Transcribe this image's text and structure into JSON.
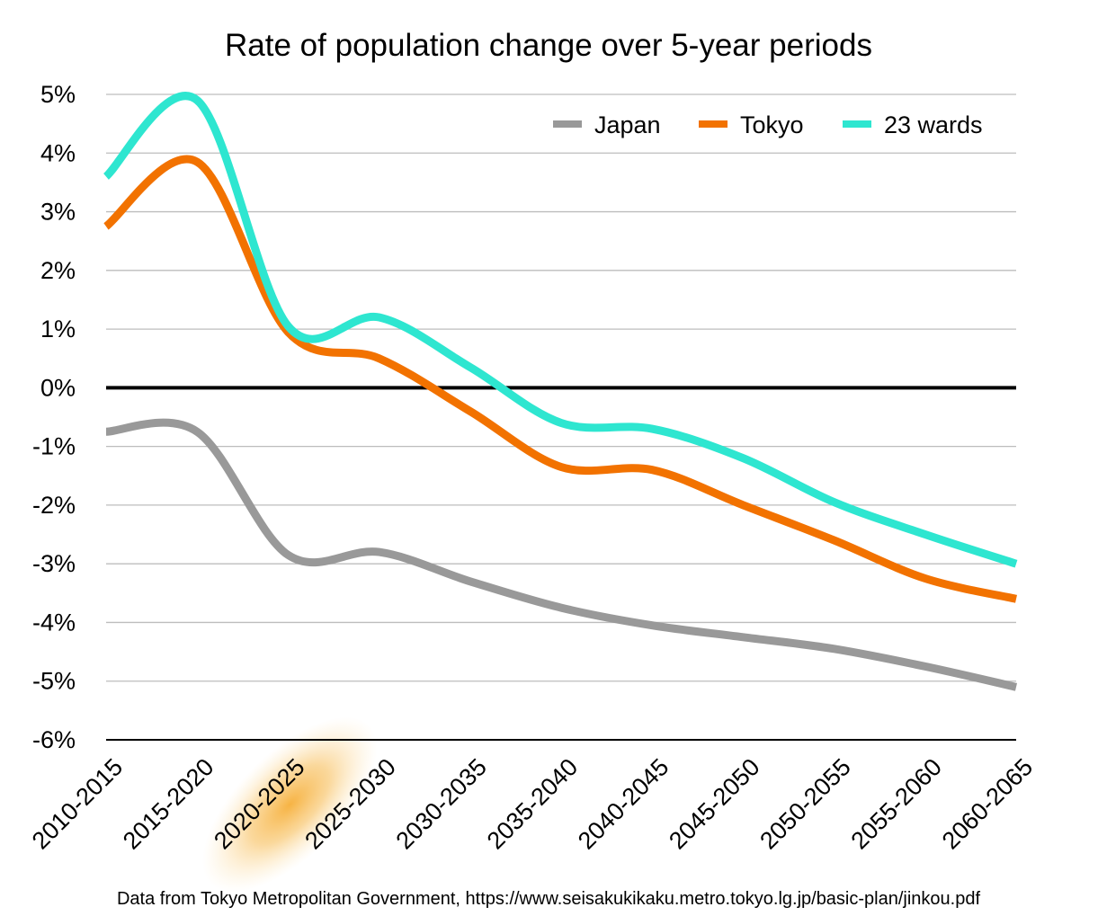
{
  "chart_data": {
    "type": "line",
    "title": "Rate of population change over 5-year periods",
    "categories": [
      "2010-2015",
      "2015-2020",
      "2020-2025",
      "2025-2030",
      "2030-2035",
      "2035-2040",
      "2040-2045",
      "2045-2050",
      "2050-2055",
      "2055-2060",
      "2060-2065"
    ],
    "series": [
      {
        "name": "Japan",
        "color": "#999999",
        "values": [
          -0.75,
          -0.75,
          -2.85,
          -2.8,
          -3.3,
          -3.75,
          -4.05,
          -4.25,
          -4.45,
          -4.75,
          -5.1
        ]
      },
      {
        "name": "Tokyo",
        "color": "#f27200",
        "values": [
          2.75,
          3.85,
          0.95,
          0.5,
          -0.4,
          -1.35,
          -1.4,
          -2.0,
          -2.6,
          -3.25,
          -3.6
        ]
      },
      {
        "name": "23 wards",
        "color": "#2ee6d0",
        "values": [
          3.6,
          4.9,
          1.05,
          1.2,
          0.35,
          -0.6,
          -0.7,
          -1.2,
          -1.95,
          -2.5,
          -3.0
        ]
      }
    ],
    "yticks": [
      "5%",
      "4%",
      "3%",
      "2%",
      "1%",
      "0%",
      "-1%",
      "-2%",
      "-3%",
      "-4%",
      "-5%",
      "-6%"
    ],
    "ylim": [
      -6,
      5
    ],
    "grid": true,
    "legend": "top-right",
    "highlighted_category": "2020-2025",
    "highlight_color": "#f5a623",
    "source": "Data from Tokyo Metropolitan Government, https://www.seisakukikaku.metro.tokyo.lg.jp/basic-plan/jinkou.pdf"
  }
}
